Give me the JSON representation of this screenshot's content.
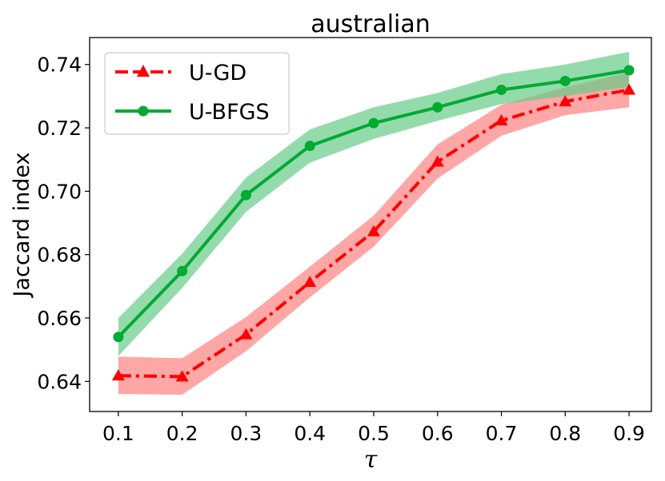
{
  "chart_data": {
    "type": "line",
    "title": "australian",
    "xlabel": "τ",
    "ylabel": "Jaccard index",
    "x": [
      0.1,
      0.2,
      0.3,
      0.4,
      0.5,
      0.6,
      0.7,
      0.8,
      0.9
    ],
    "x_ticks": [
      "0.1",
      "0.2",
      "0.3",
      "0.4",
      "0.5",
      "0.6",
      "0.7",
      "0.8",
      "0.9"
    ],
    "y_ticks": [
      "0.64",
      "0.66",
      "0.68",
      "0.70",
      "0.72",
      "0.74"
    ],
    "xlim": [
      0.055,
      0.935
    ],
    "ylim": [
      0.6305,
      0.7485
    ],
    "grid": false,
    "legend_position": "top-left",
    "series": [
      {
        "name": "U-GD",
        "color": "#ff0000",
        "band_color": "#ff8080",
        "line_style": "dash-dot",
        "marker": "triangle",
        "values": [
          0.6418,
          0.6415,
          0.6548,
          0.6713,
          0.6873,
          0.7093,
          0.7223,
          0.7283,
          0.732
        ],
        "lower": [
          0.636,
          0.6358,
          0.6495,
          0.6665,
          0.6825,
          0.704,
          0.7175,
          0.724,
          0.7265
        ],
        "upper": [
          0.6478,
          0.6473,
          0.6603,
          0.6762,
          0.6923,
          0.7148,
          0.7273,
          0.7328,
          0.7375
        ]
      },
      {
        "name": "U-BFGS",
        "color": "#00aa33",
        "band_color": "#66cc88",
        "line_style": "solid",
        "marker": "circle",
        "values": [
          0.654,
          0.6748,
          0.6988,
          0.7143,
          0.7215,
          0.7265,
          0.732,
          0.7348,
          0.7382
        ],
        "lower": [
          0.648,
          0.6695,
          0.6935,
          0.709,
          0.7165,
          0.7222,
          0.7275,
          0.73,
          0.733
        ],
        "upper": [
          0.66,
          0.6803,
          0.7043,
          0.7195,
          0.7265,
          0.731,
          0.737,
          0.74,
          0.744
        ]
      }
    ]
  }
}
